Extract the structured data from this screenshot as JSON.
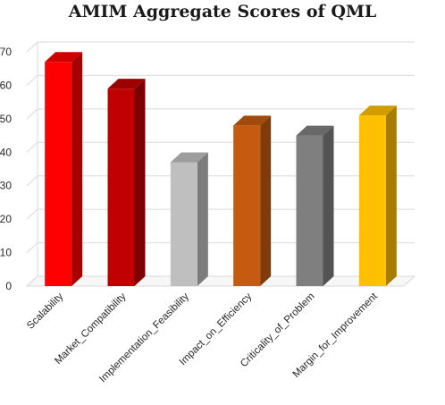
{
  "chart_data": {
    "type": "bar",
    "title": "AMIM Aggregate Scores of QML",
    "xlabel": "",
    "ylabel": "",
    "categories": [
      "Scalability",
      "Market_Compatibility",
      "Implementation_Feasibility",
      "Impact_on_Efficiency",
      "Criticality_of_Problem",
      "Margin_for_Improvement"
    ],
    "values": [
      67,
      59,
      37,
      48,
      45,
      51
    ],
    "colors": [
      "#ff0000",
      "#c00000",
      "#bfbfbf",
      "#c55a11",
      "#7f7f7f",
      "#ffc000"
    ],
    "ylim": [
      0,
      70
    ],
    "yticks": [
      0,
      10,
      20,
      30,
      40,
      50,
      60,
      70
    ],
    "grid": true,
    "style": "3d-column",
    "legend": "none"
  }
}
